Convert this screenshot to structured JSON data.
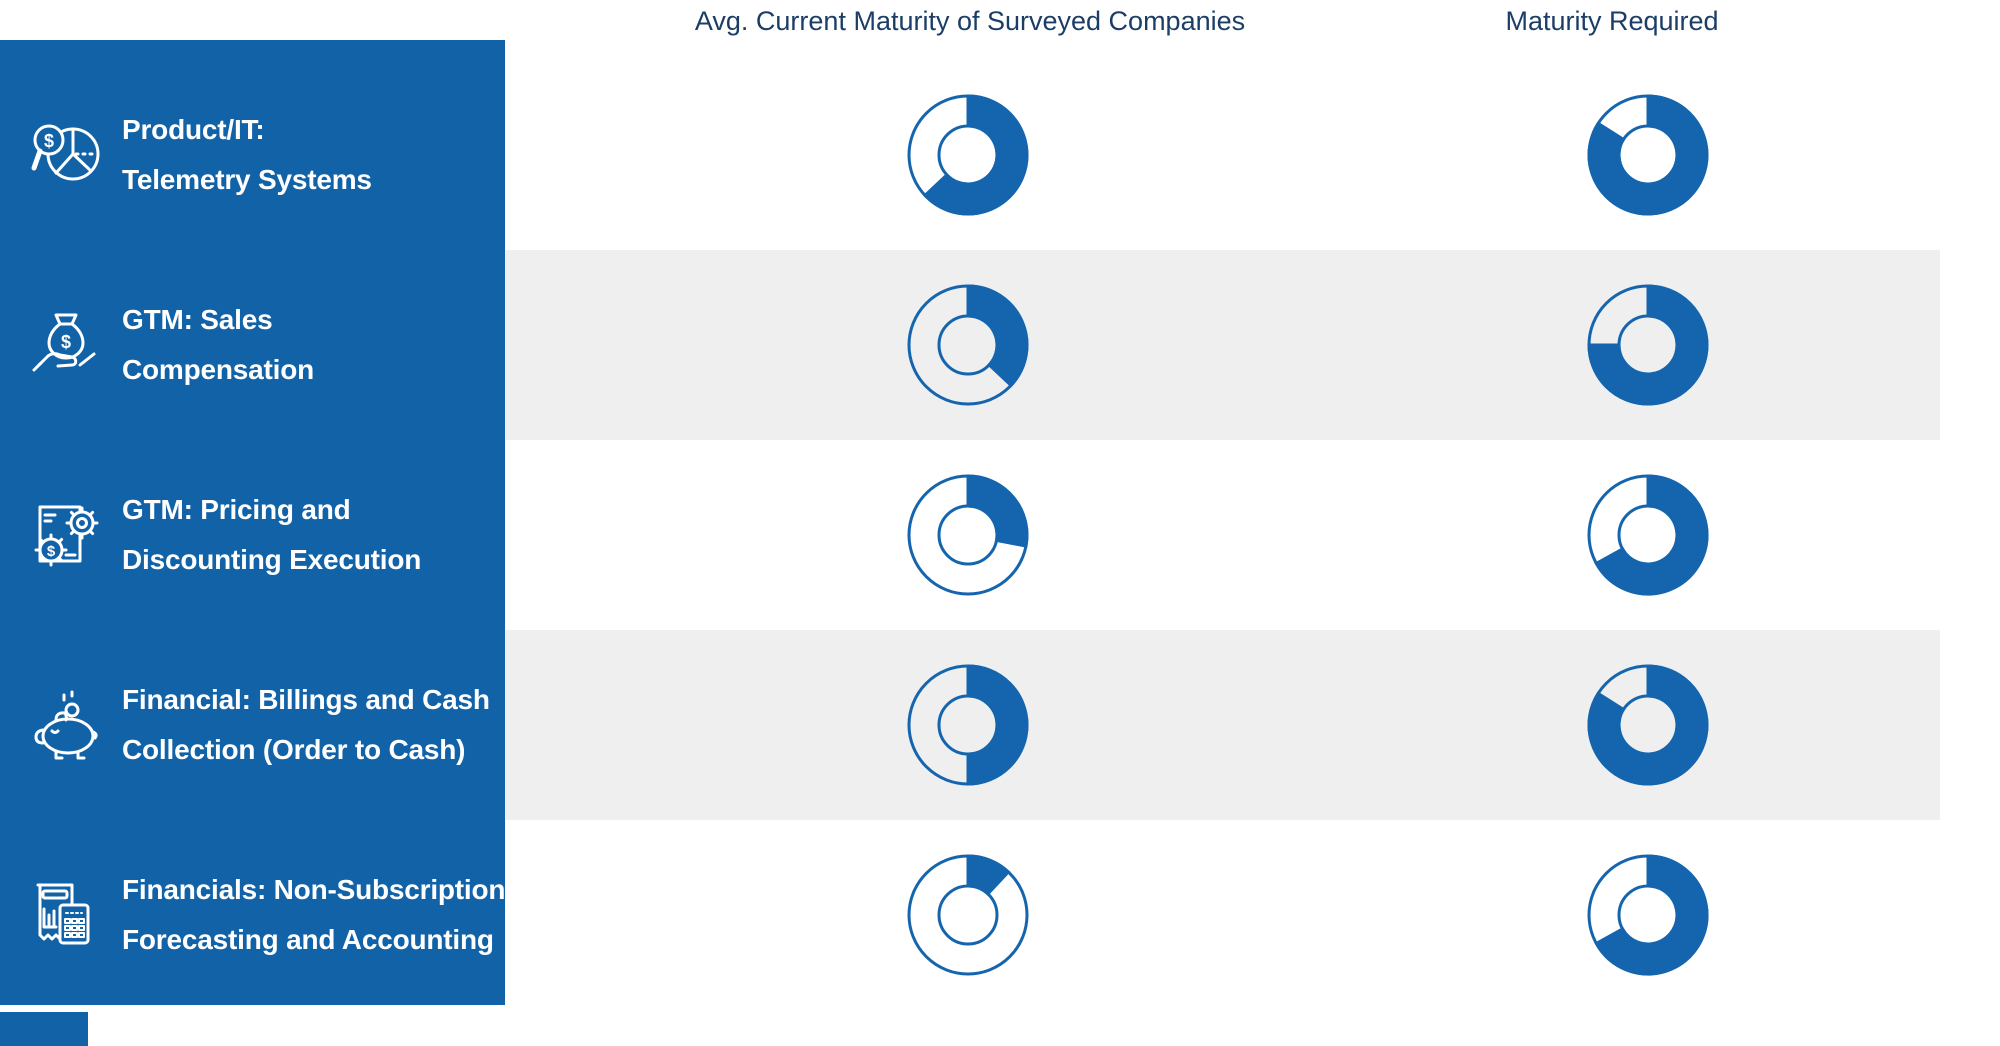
{
  "colors": {
    "sidebar_blue": "#1262A8",
    "donut_blue": "#1565AE",
    "header_navy": "#1C3E66",
    "band_gray": "#EFEFEF"
  },
  "columns": [
    {
      "label": "Avg. Current Maturity of Surveyed Companies"
    },
    {
      "label": "Maturity Required"
    }
  ],
  "rows": [
    {
      "icon": "pie-chart-magnifier-icon",
      "line1": "Product/IT:",
      "line2": "Telemetry Systems",
      "current_pct": 63,
      "required_pct": 84
    },
    {
      "icon": "money-bag-hand-icon",
      "line1": "GTM: Sales",
      "line2": "Compensation",
      "current_pct": 37,
      "required_pct": 75
    },
    {
      "icon": "document-gears-icon",
      "line1": "GTM: Pricing and",
      "line2": "Discounting Execution",
      "current_pct": 28,
      "required_pct": 67
    },
    {
      "icon": "piggy-bank-icon",
      "line1": "Financial: Billings and Cash",
      "line2": "Collection (Order to Cash)",
      "current_pct": 50,
      "required_pct": 84
    },
    {
      "icon": "receipt-calculator-icon",
      "line1": "Financials: Non-Subscription",
      "line2": "Forecasting and Accounting",
      "current_pct": 12,
      "required_pct": 67
    }
  ],
  "chart_data": {
    "type": "table",
    "cell_chart": "donut-gauge",
    "title": "",
    "categories": [
      "Product/IT: Telemetry Systems",
      "GTM: Sales Compensation",
      "GTM: Pricing and Discounting Execution",
      "Financial: Billings and Cash Collection (Order to Cash)",
      "Financials: Non-Subscription Forecasting and Accounting"
    ],
    "series": [
      {
        "name": "Avg. Current Maturity of Surveyed Companies",
        "values": [
          63,
          37,
          28,
          50,
          12
        ]
      },
      {
        "name": "Maturity Required",
        "values": [
          84,
          75,
          67,
          84,
          67
        ]
      }
    ],
    "unit": "percent of donut filled, clockwise from 12 o'clock (estimated from pixels)",
    "value_range": [
      0,
      100
    ],
    "legend_position": "column headers",
    "grid": "alternating gray row bands"
  }
}
